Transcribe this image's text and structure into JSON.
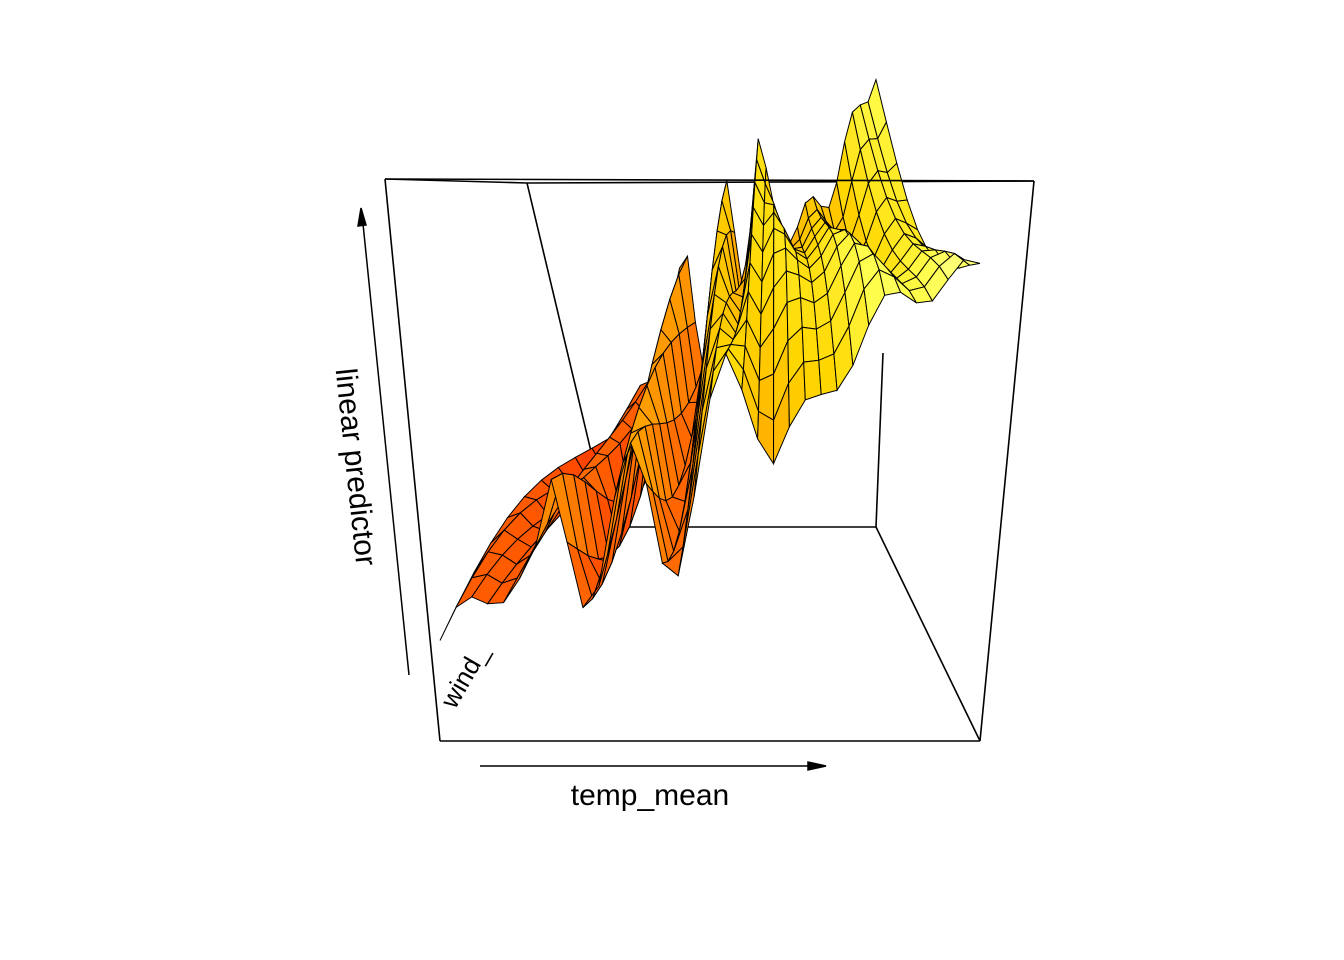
{
  "chart_data": {
    "type": "surface-3d",
    "title": "",
    "xlabel": "temp_mean",
    "ylabel": "wind_",
    "zlabel": "linear predictor",
    "box": true,
    "ticks_shown": false,
    "colormap": "heat",
    "colors": {
      "low": "#ff3a00",
      "mid": "#ffb400",
      "high": "#ffffa0",
      "edge": "#000000",
      "box": "#000000"
    },
    "surface": {
      "x_range": [
        0,
        1
      ],
      "y_range": [
        0,
        1
      ],
      "description_values": "estimated GAM partial surface; z rises from low (left, red) to high (right, pale yellow) with spiky interior"
    }
  }
}
